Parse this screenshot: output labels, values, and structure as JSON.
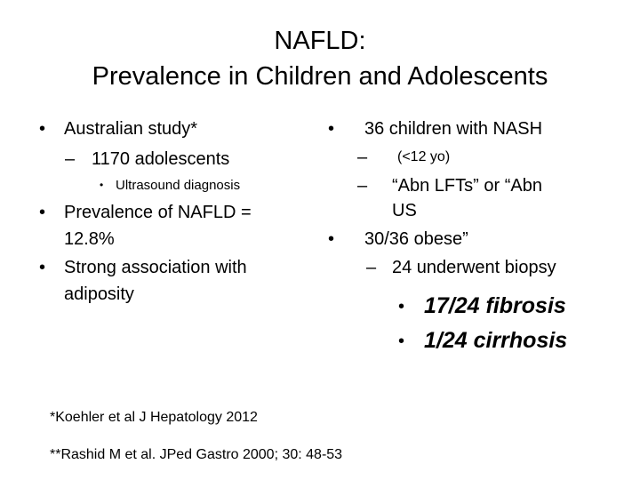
{
  "title": {
    "line1": "NAFLD:",
    "line2": "Prevalence in Children and Adolescents"
  },
  "left": {
    "bullet1": "Australian study*",
    "sub1": "1170 adolescents",
    "subsub1": "Ultrasound diagnosis",
    "bullet2_line1": "Prevalence of NAFLD =",
    "bullet2_line2": "12.8%",
    "bullet3_line1": "Strong association with",
    "bullet3_line2": "adiposity"
  },
  "right": {
    "bullet1": "36 children with NASH",
    "sub1": "(<12 yo)",
    "sub2_line1": "“Abn LFTs” or “Abn",
    "sub2_line2": "US",
    "bullet2": "30/36 obese”",
    "sub3": "24 underwent biopsy",
    "subsub1": "17/24 fibrosis",
    "subsub2": "1/24 cirrhosis"
  },
  "glyphs": {
    "bullet": "•",
    "dash": "–"
  },
  "footnotes": {
    "ref1": "*Koehler et al J Hepatology 2012",
    "ref2": "**Rashid M et al. JPed Gastro 2000; 30: 48-53"
  }
}
